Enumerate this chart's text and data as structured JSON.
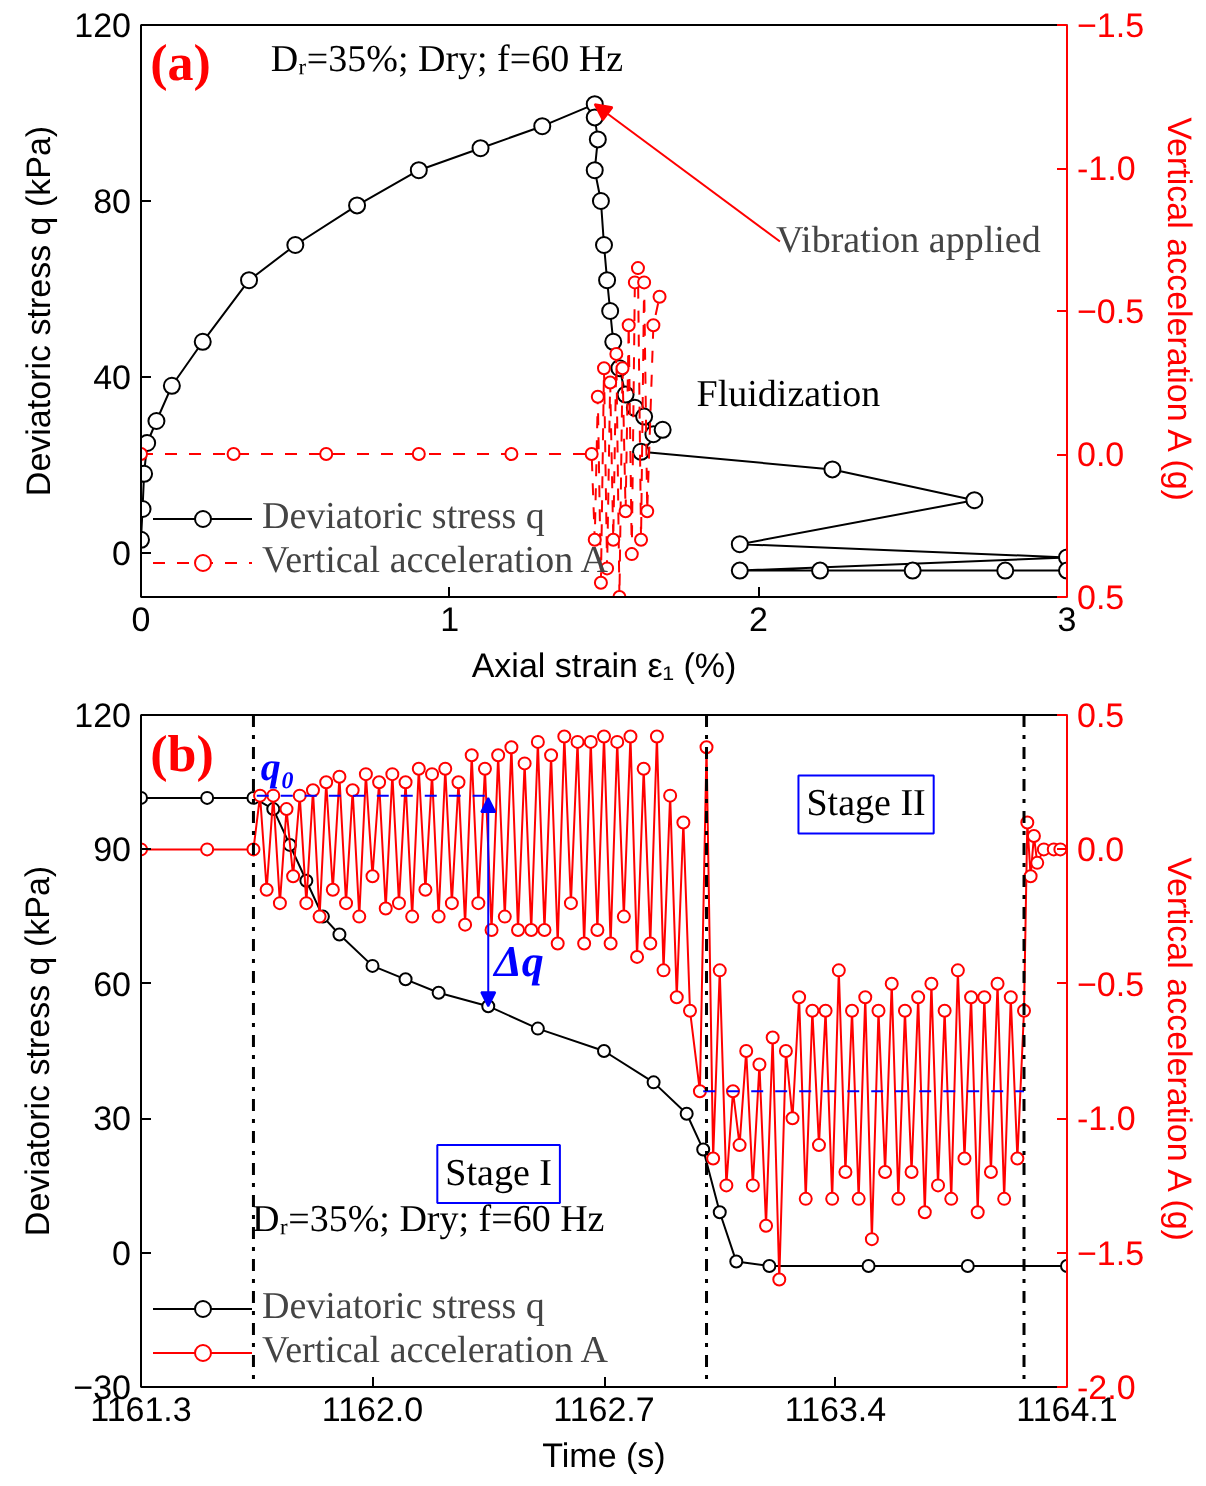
{
  "chart_data": [
    {
      "type": "line",
      "xlabel": "Axial strain ε₁ (%)",
      "ylabel": "Deviatoric stress q (kPa)",
      "y2label": "Vertical acceleration A (g)",
      "xlim": [
        0,
        3
      ],
      "xticks": [
        0,
        1,
        2,
        3
      ],
      "ylim": [
        -10,
        120
      ],
      "yticks": [
        0,
        40,
        80,
        120
      ],
      "y2lim": [
        0.5,
        -1.5
      ],
      "y2ticks": [
        -1.5,
        {
          "value": -1.0,
          "label": "-1.0"
        },
        -0.5,
        {
          "value": 0.0,
          "label": "0.0"
        },
        0.5
      ],
      "grid": false,
      "legend": "bottom left",
      "series": [
        {
          "name": "Deviatoric stress q",
          "color": "#000000",
          "marker": "circle",
          "line_style": "solid",
          "x": [
            0,
            0.005,
            0.01,
            0.02,
            0.05,
            0.1,
            0.2,
            0.35,
            0.5,
            0.7,
            0.9,
            1.1,
            1.3,
            1.47,
            1.47,
            1.48,
            1.47,
            1.49,
            1.5,
            1.51,
            1.52,
            1.53,
            1.55,
            1.57,
            1.6,
            1.63,
            1.66,
            1.69,
            1.62,
            2.24,
            2.7,
            1.94,
            3.0,
            1.94,
            2.2,
            2.5,
            2.8,
            3.0
          ],
          "values": [
            3,
            10,
            18,
            25,
            30,
            38,
            48,
            62,
            70,
            79,
            87,
            92,
            97,
            102,
            99,
            94,
            87,
            80,
            70,
            62,
            55,
            48,
            42,
            36,
            33,
            31,
            27,
            28,
            23,
            19,
            12,
            2,
            -1,
            -4,
            -4,
            -4,
            -4,
            -4
          ]
        },
        {
          "name": "Vertical acceleration A",
          "color": "#ff0000",
          "marker": "circle",
          "line_style": "dashed",
          "axis": "y2",
          "x": [
            0,
            0.3,
            0.6,
            0.9,
            1.2,
            1.46,
            1.47,
            1.48,
            1.49,
            1.5,
            1.51,
            1.52,
            1.53,
            1.54,
            1.55,
            1.56,
            1.57,
            1.58,
            1.59,
            1.6,
            1.61,
            1.62,
            1.63,
            1.64,
            1.66,
            1.68
          ],
          "values": [
            0,
            0,
            0,
            0,
            0,
            0,
            0.3,
            -0.2,
            0.45,
            -0.3,
            0.4,
            -0.25,
            0.3,
            -0.35,
            0.5,
            -0.3,
            0.2,
            -0.45,
            0.35,
            -0.6,
            -0.65,
            0.3,
            -0.6,
            0.2,
            -0.45,
            -0.55
          ]
        }
      ],
      "annotations": [
        "(a)",
        "Dᵣ=35%;  Dry; f=60 Hz",
        {
          "text": "Vibration applied",
          "x": 1.47,
          "y": 102
        },
        "Fluidization"
      ]
    },
    {
      "type": "line",
      "xlabel": "Time (s)",
      "ylabel": "Deviatoric stress q (kPa)",
      "y2label": "Vertical acceleration A (g)",
      "xlim": [
        1161.3,
        1164.1
      ],
      "xticks": [
        1161.3,
        {
          "value": 1162.0,
          "label": "1162.0"
        },
        1162.7,
        1163.4,
        1164.1
      ],
      "ylim": [
        -30,
        120
      ],
      "yticks": [
        -30,
        0,
        30,
        60,
        90,
        120
      ],
      "y2lim": [
        -2.0,
        0.5
      ],
      "y2ticks": [
        {
          "value": -2.0,
          "label": "-2.0"
        },
        -1.5,
        {
          "value": -1.0,
          "label": "-1.0"
        },
        -0.5,
        {
          "value": 0.0,
          "label": "0.0"
        },
        0.5
      ],
      "grid": false,
      "legend": "bottom left",
      "series": [
        {
          "name": "Deviatoric stress q",
          "color": "#000000",
          "marker": "circle",
          "line_style": "solid",
          "x": [
            1161.3,
            1161.5,
            1161.64,
            1161.7,
            1161.75,
            1161.8,
            1161.85,
            1161.9,
            1162.0,
            1162.1,
            1162.2,
            1162.35,
            1162.5,
            1162.7,
            1162.85,
            1162.95,
            1163.0,
            1163.05,
            1163.1,
            1163.2,
            1163.5,
            1163.8,
            1164.1
          ],
          "values": [
            101.5,
            101.5,
            101.5,
            99,
            91,
            83,
            75,
            71,
            64,
            61,
            58,
            55,
            50,
            45,
            38,
            31,
            23,
            9,
            -2,
            -3,
            -3,
            -3,
            -3
          ]
        },
        {
          "name": "Vertical acceleration A",
          "color": "#ff0000",
          "marker": "circle",
          "line_style": "solid",
          "axis": "y2",
          "x": [
            1161.3,
            1161.5,
            1161.64,
            1161.66,
            1161.68,
            1161.7,
            1161.72,
            1161.74,
            1161.76,
            1161.78,
            1161.8,
            1161.82,
            1161.84,
            1161.86,
            1161.88,
            1161.9,
            1161.92,
            1161.94,
            1161.96,
            1161.98,
            1162.0,
            1162.02,
            1162.04,
            1162.06,
            1162.08,
            1162.1,
            1162.12,
            1162.14,
            1162.16,
            1162.18,
            1162.2,
            1162.22,
            1162.24,
            1162.26,
            1162.28,
            1162.3,
            1162.32,
            1162.34,
            1162.36,
            1162.38,
            1162.4,
            1162.42,
            1162.44,
            1162.46,
            1162.48,
            1162.5,
            1162.52,
            1162.54,
            1162.56,
            1162.58,
            1162.6,
            1162.62,
            1162.64,
            1162.66,
            1162.68,
            1162.7,
            1162.72,
            1162.74,
            1162.76,
            1162.78,
            1162.8,
            1162.82,
            1162.84,
            1162.86,
            1162.88,
            1162.9,
            1162.92,
            1162.94,
            1162.96,
            1162.99,
            1163.01,
            1163.03,
            1163.05,
            1163.07,
            1163.09,
            1163.11,
            1163.13,
            1163.15,
            1163.17,
            1163.19,
            1163.21,
            1163.23,
            1163.25,
            1163.27,
            1163.29,
            1163.31,
            1163.33,
            1163.35,
            1163.37,
            1163.39,
            1163.41,
            1163.43,
            1163.45,
            1163.47,
            1163.49,
            1163.51,
            1163.53,
            1163.55,
            1163.57,
            1163.59,
            1163.61,
            1163.63,
            1163.65,
            1163.67,
            1163.69,
            1163.71,
            1163.73,
            1163.75,
            1163.77,
            1163.79,
            1163.81,
            1163.83,
            1163.85,
            1163.87,
            1163.89,
            1163.91,
            1163.93,
            1163.95,
            1163.97,
            1163.98,
            1163.99,
            1164.0,
            1164.01,
            1164.03,
            1164.06,
            1164.08
          ],
          "values": [
            0,
            0,
            0,
            0.2,
            -0.15,
            0.2,
            -0.2,
            0.15,
            -0.1,
            0.2,
            -0.2,
            0.22,
            -0.25,
            0.25,
            -0.15,
            0.27,
            -0.2,
            0.22,
            -0.25,
            0.28,
            -0.1,
            0.25,
            -0.22,
            0.28,
            -0.2,
            0.25,
            -0.25,
            0.3,
            -0.15,
            0.28,
            -0.25,
            0.3,
            -0.2,
            0.25,
            -0.28,
            0.35,
            -0.2,
            0.3,
            -0.3,
            0.35,
            -0.25,
            0.38,
            -0.3,
            0.32,
            -0.3,
            0.4,
            -0.3,
            0.35,
            -0.35,
            0.42,
            -0.2,
            0.4,
            -0.35,
            0.4,
            -0.3,
            0.42,
            -0.35,
            0.4,
            -0.25,
            0.42,
            -0.4,
            0.3,
            -0.35,
            0.42,
            -0.45,
            0.2,
            -0.55,
            0.1,
            -0.6,
            -0.9,
            0.38,
            -1.15,
            -0.45,
            -1.25,
            -0.9,
            -1.1,
            -0.75,
            -1.25,
            -0.8,
            -1.4,
            -0.7,
            -1.6,
            -0.75,
            -1.0,
            -0.55,
            -1.3,
            -0.6,
            -1.1,
            -0.6,
            -1.3,
            -0.45,
            -1.2,
            -0.6,
            -1.3,
            -0.55,
            -1.45,
            -0.6,
            -1.2,
            -0.5,
            -1.3,
            -0.6,
            -1.2,
            -0.55,
            -1.35,
            -0.5,
            -1.25,
            -0.6,
            -1.3,
            -0.45,
            -1.15,
            -0.55,
            -1.35,
            -0.55,
            -1.2,
            -0.5,
            -1.3,
            -0.55,
            -1.15,
            -0.6,
            0.1,
            -0.1,
            0.05,
            -0.05,
            0.0,
            0.0,
            0.0
          ]
        },
        {
          "color": "#0000ff",
          "marker": "none",
          "line_style": "dashed",
          "x": [
            1161.65,
            1162.35
          ],
          "values": [
            102,
            102
          ]
        },
        {
          "color": "#0000ff",
          "marker": "none",
          "line_style": "dashed",
          "axis": "y2",
          "x": [
            1163.0,
            1163.97
          ],
          "values": [
            -0.9,
            -0.9
          ]
        }
      ],
      "ref_lines": [
        {
          "axis": "x",
          "value": 1161.64,
          "color": "#000000",
          "line_style": "dashdot"
        },
        {
          "axis": "x",
          "value": 1163.01,
          "color": "#000000",
          "line_style": "dashdot"
        },
        {
          "axis": "x",
          "value": 1163.97,
          "color": "#000000",
          "line_style": "dashdot"
        }
      ],
      "annotations": [
        "(b)",
        {
          "text": "q₀",
          "x": 1161.65,
          "y": 101.5
        },
        {
          "text": "Δq",
          "x": 1162.35,
          "y": 55
        },
        "Stage I",
        "Stage II",
        "Dᵣ=35%; Dry; f=60 Hz"
      ]
    }
  ]
}
